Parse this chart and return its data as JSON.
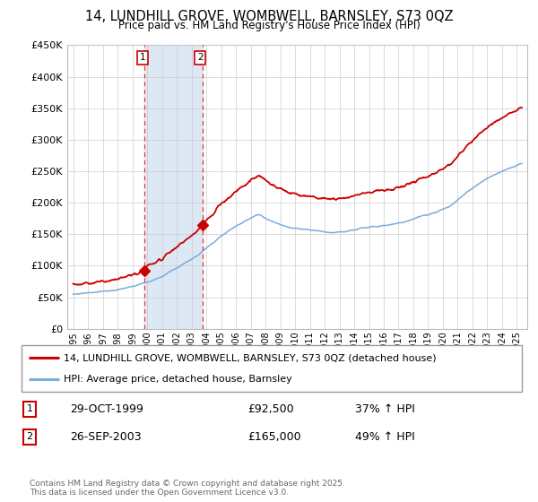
{
  "title": "14, LUNDHILL GROVE, WOMBWELL, BARNSLEY, S73 0QZ",
  "subtitle": "Price paid vs. HM Land Registry's House Price Index (HPI)",
  "ylim": [
    0,
    450000
  ],
  "yticks": [
    0,
    50000,
    100000,
    150000,
    200000,
    250000,
    300000,
    350000,
    400000,
    450000
  ],
  "ytick_labels": [
    "£0",
    "£50K",
    "£100K",
    "£150K",
    "£200K",
    "£250K",
    "£300K",
    "£350K",
    "£400K",
    "£450K"
  ],
  "xlim_start": 1994.6,
  "xlim_end": 2025.7,
  "sale1_date": 1999.83,
  "sale1_price": 92500,
  "sale2_date": 2003.73,
  "sale2_price": 165000,
  "shade_color": "#dce9f5",
  "vline_color": "#ee3333",
  "red_line_color": "#cc0000",
  "blue_line_color": "#7aacdc",
  "marker_color": "#cc0000",
  "footnote": "Contains HM Land Registry data © Crown copyright and database right 2025.\nThis data is licensed under the Open Government Licence v3.0.",
  "sale1_label": "29-OCT-1999",
  "sale1_amount": "£92,500",
  "sale1_hpi": "37% ↑ HPI",
  "sale2_label": "26-SEP-2003",
  "sale2_amount": "£165,000",
  "sale2_hpi": "49% ↑ HPI",
  "legend_line1": "14, LUNDHILL GROVE, WOMBWELL, BARNSLEY, S73 0QZ (detached house)",
  "legend_line2": "HPI: Average price, detached house, Barnsley"
}
